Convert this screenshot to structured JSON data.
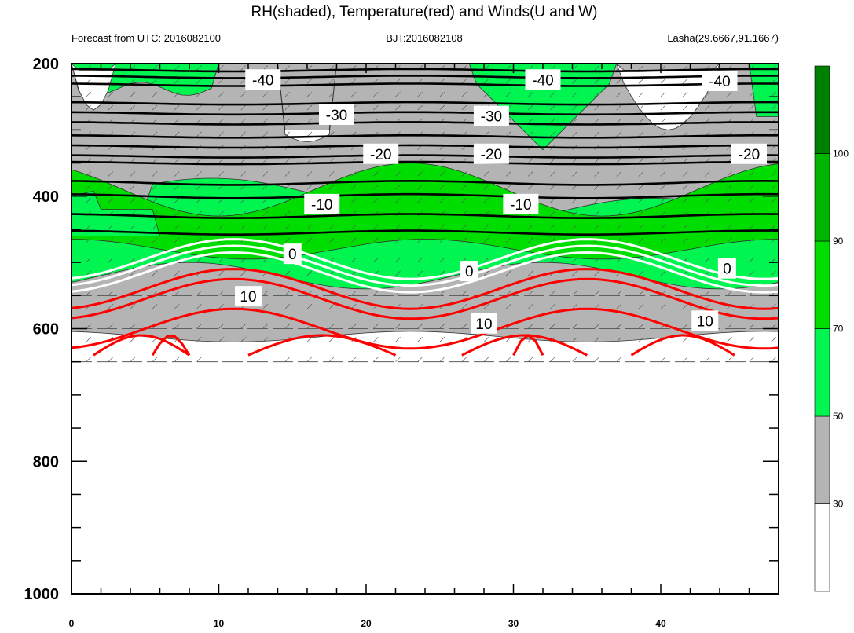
{
  "chart_data": {
    "type": "heatmap",
    "title": "RH(shaded), Temperature(red) and Winds(U and W)",
    "subtitle_left": "Forecast from UTC: 2016082100",
    "subtitle_center": "BJT:2016082108",
    "subtitle_right": "Lasha(29.6667,91.1667)",
    "x_axis": {
      "range": [
        0,
        48
      ],
      "ticks": [
        0,
        10,
        20,
        30,
        40
      ]
    },
    "y_axis": {
      "range": [
        200,
        1000
      ],
      "ticks": [
        200,
        400,
        600,
        800,
        1000
      ],
      "inverted": true
    },
    "colorbar": {
      "labels": [
        30,
        50,
        70,
        90,
        100
      ],
      "colors": [
        "#ffffff",
        "#b4b4b4",
        "#00f550",
        "#00dd00",
        "#00b400",
        "#008000"
      ]
    },
    "temperature_contours": [
      {
        "level": -40,
        "color": "#000000",
        "pressure": [
          210,
          220,
          232
        ],
        "labels": [
          [
            13,
            224
          ],
          [
            32,
            224
          ],
          [
            44,
            226
          ]
        ]
      },
      {
        "level": -30,
        "color": "#000000",
        "pressure": [
          260,
          275,
          290
        ],
        "labels": [
          [
            18,
            277
          ],
          [
            28.5,
            279
          ]
        ]
      },
      {
        "level": -20,
        "color": "#000000",
        "pressure": [
          310,
          325,
          340,
          350
        ],
        "labels": [
          [
            21,
            336
          ],
          [
            28.5,
            336
          ],
          [
            46,
            336
          ]
        ]
      },
      {
        "level": -10,
        "color": "#000000",
        "pressure": [
          380,
          400,
          430,
          455
        ],
        "labels": [
          [
            17,
            412
          ],
          [
            30.5,
            412
          ]
        ]
      },
      {
        "level": 0,
        "color": "#ffffff",
        "pressure": [
          495,
          505,
          515
        ],
        "labels": [
          [
            15,
            487
          ],
          [
            27,
            513
          ],
          [
            44.5,
            509
          ]
        ]
      },
      {
        "level": 10,
        "color": "#ff0000",
        "pressure": [
          540,
          555,
          600
        ],
        "labels": [
          [
            12,
            551
          ],
          [
            28,
            592
          ],
          [
            43,
            588
          ]
        ]
      }
    ],
    "annotations": [
      {
        "value": "-40"
      },
      {
        "value": "-40"
      },
      {
        "value": "-40"
      },
      {
        "value": "-30"
      },
      {
        "value": "-30"
      },
      {
        "value": "-20"
      },
      {
        "value": "-20"
      },
      {
        "value": "-20"
      },
      {
        "value": "-10"
      },
      {
        "value": "-10"
      },
      {
        "value": "0"
      },
      {
        "value": "0"
      },
      {
        "value": "0"
      },
      {
        "value": "10"
      },
      {
        "value": "10"
      },
      {
        "value": "10"
      }
    ]
  }
}
